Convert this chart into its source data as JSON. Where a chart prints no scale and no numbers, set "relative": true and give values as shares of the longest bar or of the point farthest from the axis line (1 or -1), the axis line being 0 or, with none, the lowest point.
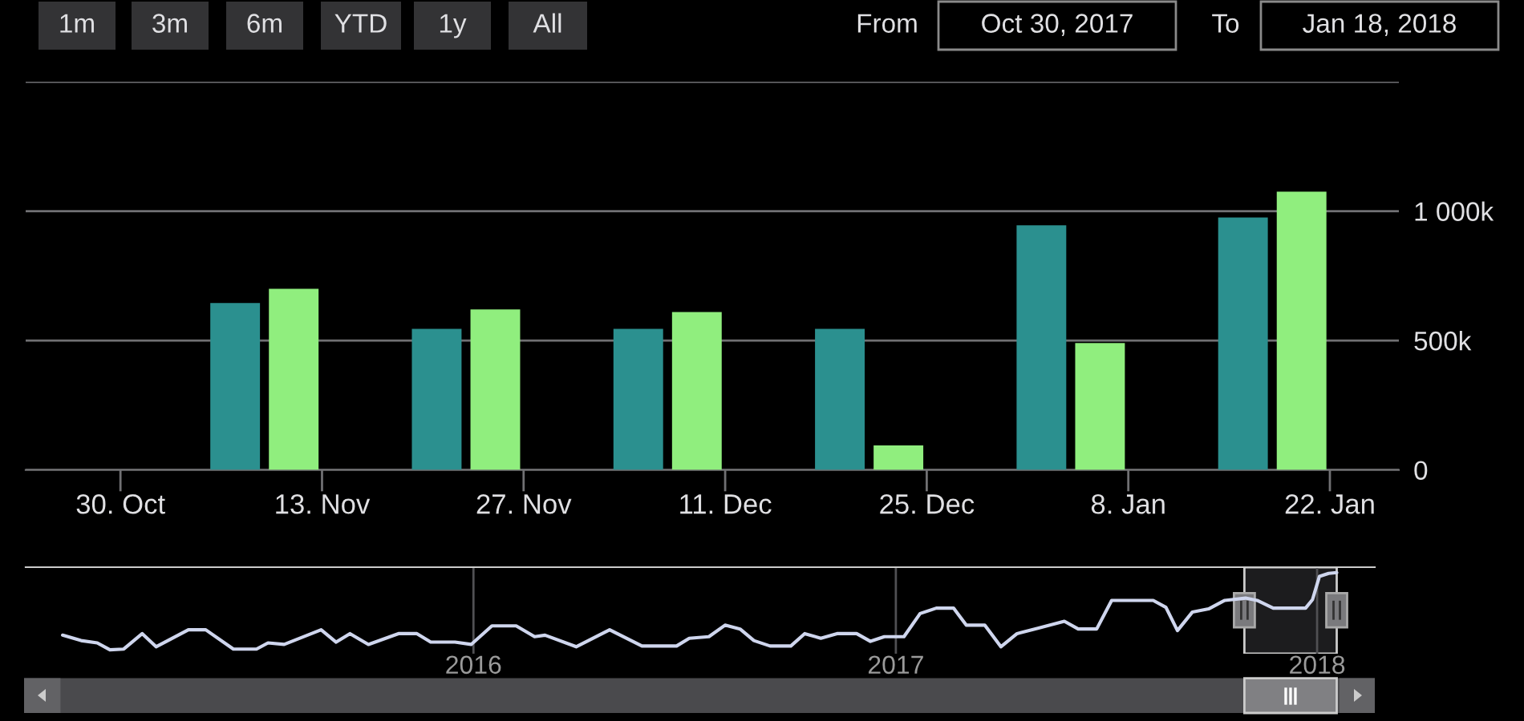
{
  "chart_data": [
    {
      "type": "bar",
      "x": [
        "2017-11-09",
        "2017-11-23",
        "2017-12-07",
        "2017-12-21",
        "2018-01-04",
        "2018-01-18"
      ],
      "series": [
        {
          "color": "#2b908f",
          "values": [
            645000,
            545000,
            545000,
            545000,
            945000,
            975000
          ]
        },
        {
          "color": "#90ee7e",
          "values": [
            700000,
            620000,
            610000,
            95000,
            490000,
            1075000
          ]
        }
      ],
      "xlim": [
        "2017-10-23T10:00",
        "2018-01-26T19:00"
      ],
      "xticks": [
        {
          "value": "2017-10-30",
          "label": "30. Oct"
        },
        {
          "value": "2017-11-13",
          "label": "13. Nov"
        },
        {
          "value": "2017-11-27",
          "label": "27. Nov"
        },
        {
          "value": "2017-12-11",
          "label": "11. Dec"
        },
        {
          "value": "2017-12-25",
          "label": "25. Dec"
        },
        {
          "value": "2018-01-08",
          "label": "8. Jan"
        },
        {
          "value": "2018-01-22",
          "label": "22. Jan"
        }
      ],
      "ylim": [
        0,
        1500000
      ],
      "yticks": [
        0,
        {
          "value": 500000,
          "label": "500k"
        },
        {
          "value": 1000000,
          "label": "1 000k"
        },
        {
          "value": 1500000,
          "label": null
        }
      ],
      "grid": "y",
      "annotations": [
        "1m",
        "3m",
        "6m",
        "YTD",
        "1y",
        "All",
        "From",
        "Oct 30, 2017",
        "To",
        "Jan 18, 2018"
      ]
    },
    {
      "type": "line",
      "relative": true,
      "tick_labels": "x",
      "x": [
        "2015-01-10",
        "2015-01-26",
        "2015-02-09",
        "2015-02-20",
        "2015-03-04",
        "2015-03-20",
        "2015-04-01",
        "2015-04-29",
        "2015-05-14",
        "2015-06-07",
        "2015-06-27",
        "2015-07-07",
        "2015-07-21",
        "2015-08-22",
        "2015-09-04",
        "2015-09-16",
        "2015-10-02",
        "2015-10-28",
        "2015-11-13",
        "2015-11-25",
        "2015-12-16",
        "2015-12-30",
        "2016-01-17",
        "2016-02-07",
        "2016-02-23",
        "2016-03-03",
        "2016-03-30",
        "2016-04-28",
        "2016-05-26",
        "2016-06-25",
        "2016-07-06",
        "2016-07-23",
        "2016-08-06",
        "2016-08-19",
        "2016-08-31",
        "2016-09-14",
        "2016-10-02",
        "2016-10-14",
        "2016-10-28",
        "2016-11-11",
        "2016-11-28",
        "2016-12-10",
        "2016-12-22",
        "2017-01-08",
        "2017-01-22",
        "2017-02-05",
        "2017-02-20",
        "2017-03-03",
        "2017-03-19",
        "2017-04-02",
        "2017-04-16",
        "2017-05-04",
        "2017-05-27",
        "2017-06-08",
        "2017-06-24",
        "2017-07-07",
        "2017-08-12",
        "2017-08-23",
        "2017-09-02",
        "2017-09-15",
        "2017-09-29",
        "2017-10-13",
        "2017-10-31",
        "2017-11-10",
        "2017-11-24",
        "2017-12-22",
        "2017-12-28",
        "2018-01-03",
        "2018-01-11",
        "2018-01-18"
      ],
      "series": [
        {
          "color": "#cfd6ee",
          "values": [
            0.19,
            0.12,
            0.09,
            0,
            0.01,
            0.21,
            0.04,
            0.26,
            0.26,
            0.01,
            0.01,
            0.09,
            0.07,
            0.26,
            0.1,
            0.21,
            0.07,
            0.21,
            0.21,
            0.1,
            0.1,
            0.07,
            0.31,
            0.31,
            0.17,
            0.19,
            0.04,
            0.26,
            0.05,
            0.05,
            0.15,
            0.17,
            0.32,
            0.27,
            0.12,
            0.05,
            0.05,
            0.21,
            0.15,
            0.21,
            0.21,
            0.11,
            0.17,
            0.17,
            0.47,
            0.54,
            0.54,
            0.32,
            0.32,
            0.04,
            0.21,
            0.28,
            0.37,
            0.27,
            0.27,
            0.64,
            0.64,
            0.55,
            0.25,
            0.49,
            0.53,
            0.64,
            0.67,
            0.64,
            0.54,
            0.54,
            0.65,
            0.95,
            0.99,
            1
          ]
        }
      ],
      "xlim": [
        "2014-12-09",
        "2018-02-20"
      ],
      "xticks": [
        {
          "value": "2016-01-01",
          "label": "2016"
        },
        {
          "value": "2017-01-01",
          "label": "2017"
        },
        {
          "value": "2018-01-01",
          "label": "2018"
        }
      ],
      "grid": "x",
      "bands": [
        {
          "axis": "x",
          "from": "2017-10-30",
          "to": "2018-01-18",
          "color": "#1c1c1e"
        }
      ]
    }
  ]
}
